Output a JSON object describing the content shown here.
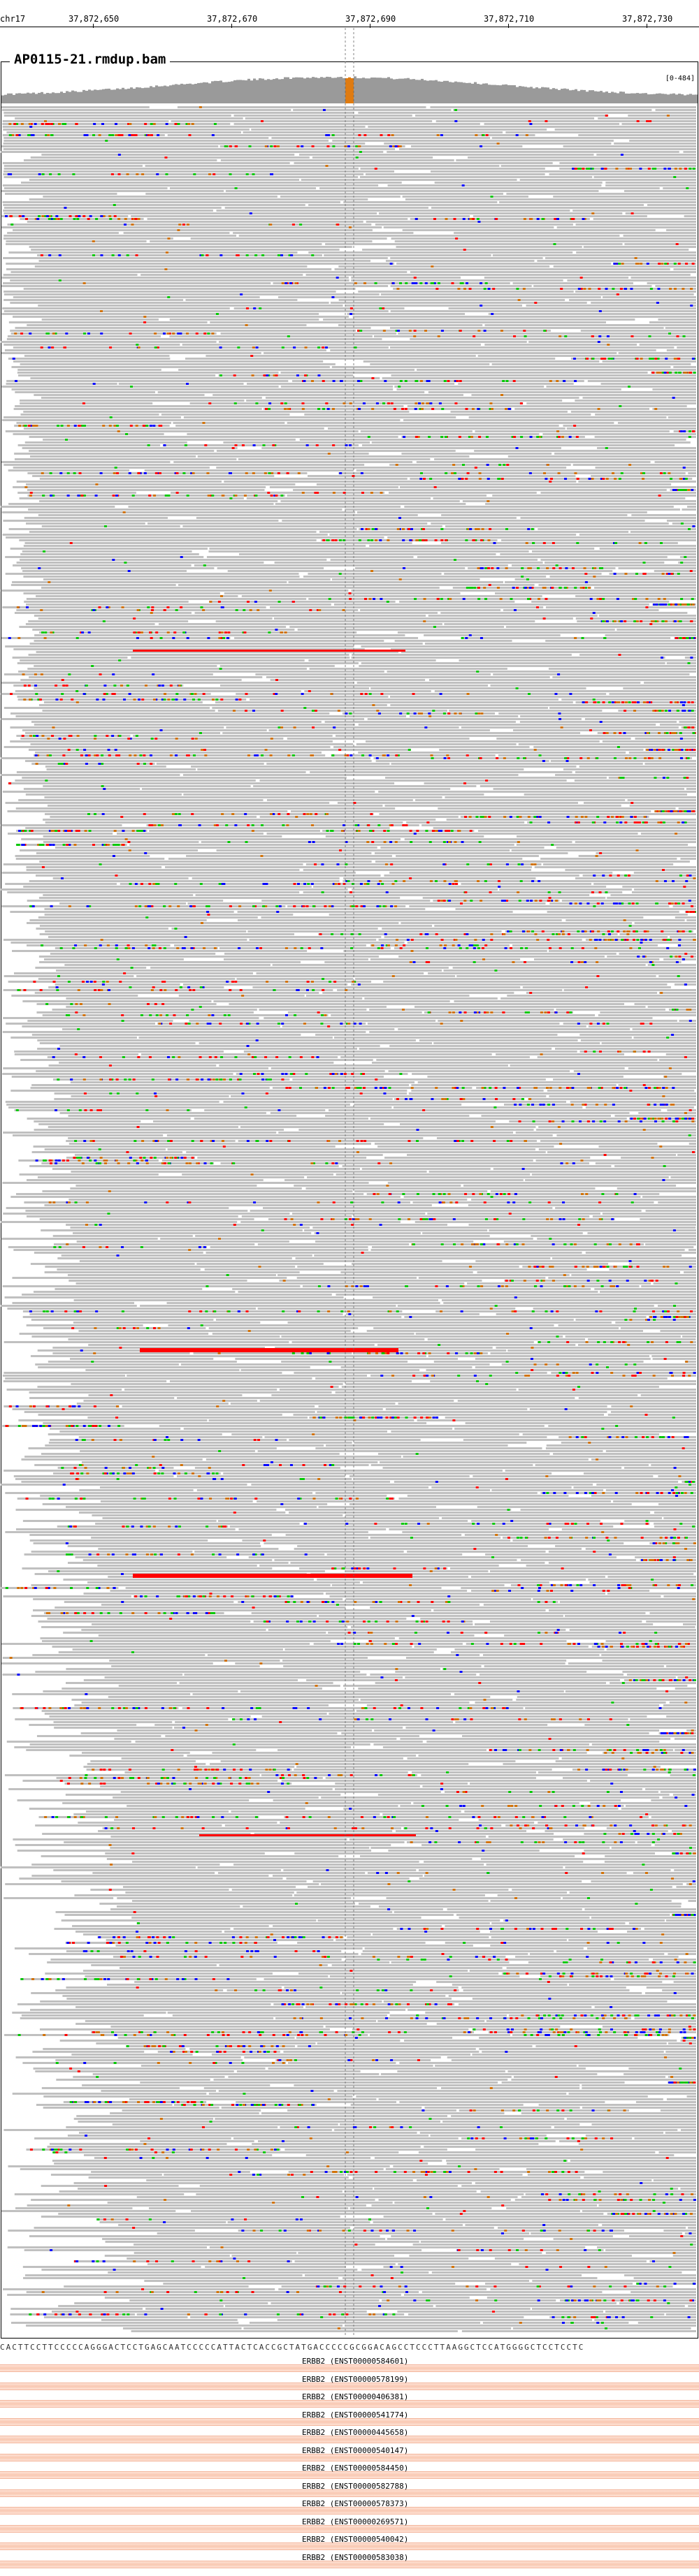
{
  "ruler": {
    "chromosome": "chr17",
    "ticks": [
      "37,872,650",
      "37,872,670",
      "37,872,690",
      "37,872,710",
      "37,872,730"
    ]
  },
  "track": {
    "title": "AP0115-21.rmdup.bam",
    "coverage_scale": "[0-484]"
  },
  "sequence": "CACTTCCTTCCCCCAGGGACTCCTGAGCAATCCCCCATTACTCACCGCTATGACCCCCGCGGACAGCCTCCCTTAAGGCTCCATGGGGCTCCTCCTC",
  "genes": [
    "ERBB2 (ENST00000584601)",
    "ERBB2 (ENST00000578199)",
    "ERBB2 (ENST00000406381)",
    "ERBB2 (ENST00000541774)",
    "ERBB2 (ENST00000445658)",
    "ERBB2 (ENST00000540147)",
    "ERBB2 (ENST00000584450)",
    "ERBB2 (ENST00000582788)",
    "ERBB2 (ENST00000578373)",
    "ERBB2 (ENST00000269571)",
    "ERBB2 (ENST00000540042)",
    "ERBB2 (ENST00000583038)"
  ],
  "colors": {
    "read": "#c0c0c0",
    "coverage": "#9a9a9a",
    "coverage_variant": "#e07b10",
    "mismatch_a": "#00c800",
    "mismatch_c": "#0000ff",
    "mismatch_g": "#d17105",
    "mismatch_t": "#ff0000",
    "insertion": "#8a2be2",
    "gene": "#f9c8b2"
  },
  "icons": {
    "center_line": "dashed-center-guide"
  }
}
